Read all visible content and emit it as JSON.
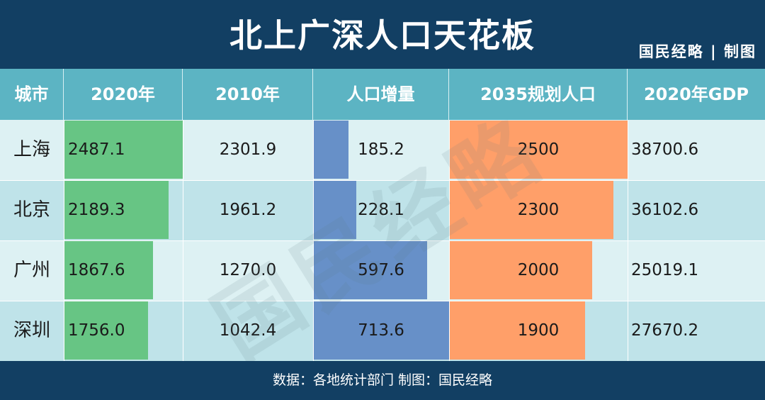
{
  "header": {
    "title": "北上广深人口天花板",
    "credit": "国民经略 | 制图"
  },
  "footer": {
    "source": "数据：各地统计部门  制图：国民经略"
  },
  "watermark": "国民经略",
  "colors": {
    "header_bg": "#123f63",
    "col_header_bg": "#5cb4c3",
    "row_light": "#ddf1f3",
    "row_dark": "#bfe3e9",
    "bar_2020": "#67c584",
    "bar_increase": "#6790c8",
    "bar_2035": "#ff9f69"
  },
  "chart_data": {
    "type": "table",
    "title": "北上广深人口天花板",
    "columns": [
      "城市",
      "2020年",
      "2010年",
      "人口增量",
      "2035规划人口",
      "2020年GDP"
    ],
    "rows": [
      {
        "city": "上海",
        "pop2020": "2487.1",
        "pop2010": "2301.9",
        "increase": "185.2",
        "plan2035": "2500",
        "gdp2020": "38700.6"
      },
      {
        "city": "北京",
        "pop2020": "2189.3",
        "pop2010": "1961.2",
        "increase": "228.1",
        "plan2035": "2300",
        "gdp2020": "36102.6"
      },
      {
        "city": "广州",
        "pop2020": "1867.6",
        "pop2010": "1270.0",
        "increase": "597.6",
        "plan2035": "2000",
        "gdp2020": "25019.1"
      },
      {
        "city": "深圳",
        "pop2020": "1756.0",
        "pop2010": "1042.4",
        "increase": "713.6",
        "plan2035": "1900",
        "gdp2020": "27670.2"
      }
    ],
    "bar_columns": {
      "pop2020": {
        "max": 2487.1
      },
      "increase": {
        "max": 713.6
      },
      "plan2035": {
        "max": 2500
      }
    }
  }
}
